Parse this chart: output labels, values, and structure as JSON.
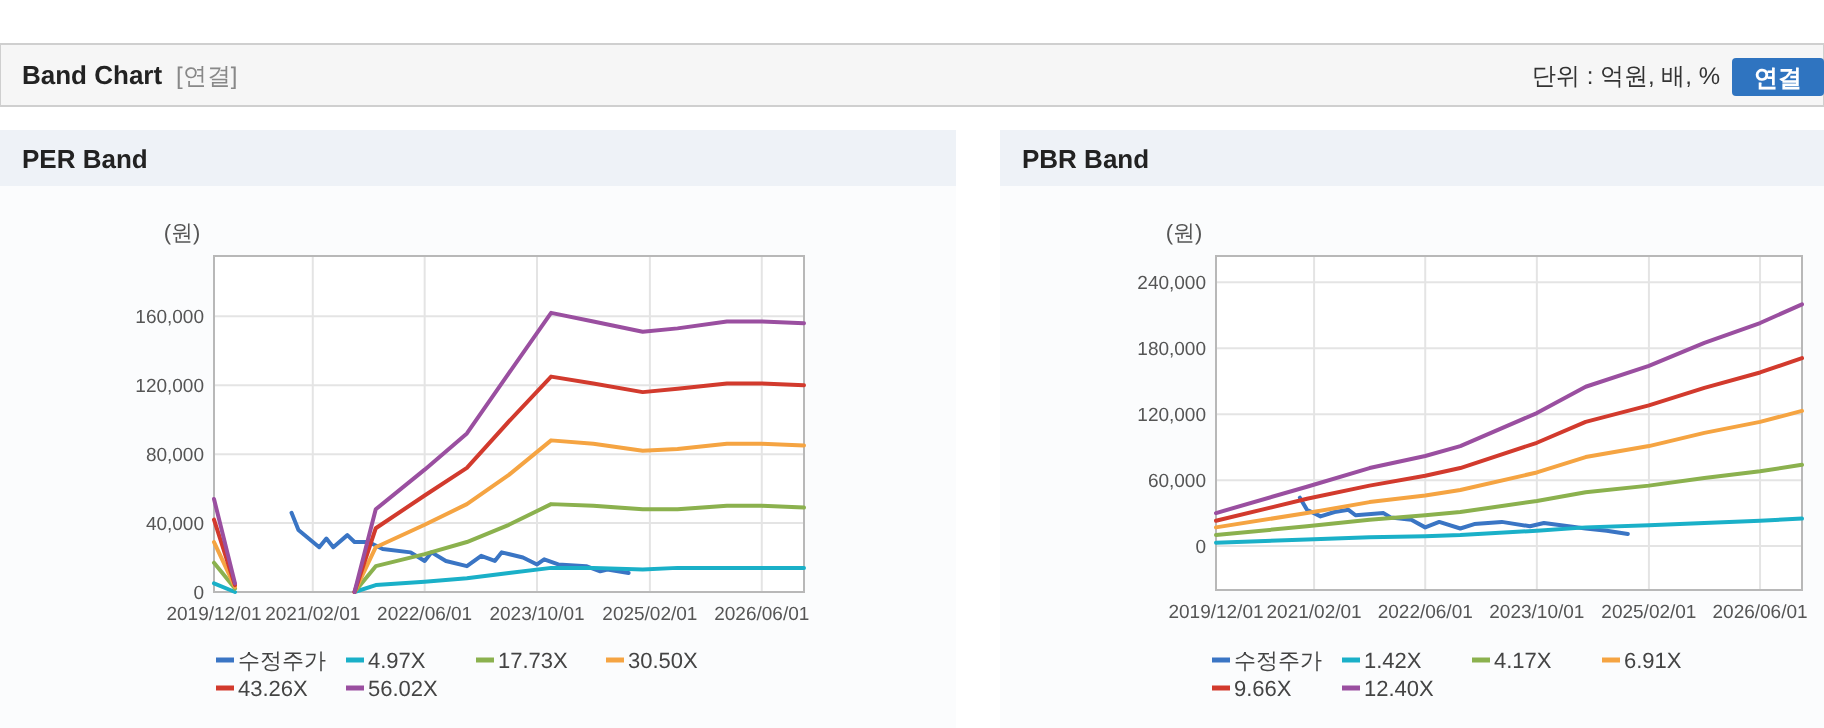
{
  "chart_data": [
    {
      "type": "other",
      "title": "Band Chart",
      "subtitle": "[연결]",
      "annotations": [
        "단위 : 억원, 배, %",
        "연결"
      ]
    },
    {
      "type": "line",
      "title": "PER Band",
      "ylabel": "(원)",
      "xlim": [
        "2019-12-01",
        "2026-12-01"
      ],
      "xticks": [
        {
          "value": "2019-12-01",
          "label": "2019/12/01"
        },
        {
          "value": "2021-02-01",
          "label": "2021/02/01"
        },
        {
          "value": "2022-06-01",
          "label": "2022/06/01"
        },
        {
          "value": "2023-10-01",
          "label": "2023/10/01"
        },
        {
          "value": "2025-02-01",
          "label": "2025/02/01"
        },
        {
          "value": "2026-06-01",
          "label": "2026/06/01"
        }
      ],
      "ylim": [
        0,
        195000
      ],
      "yticks": [
        {
          "value": 0,
          "label": "0"
        },
        {
          "value": 40000,
          "label": "40,000"
        },
        {
          "value": 80000,
          "label": "80,000"
        },
        {
          "value": 120000,
          "label": "120,000"
        },
        {
          "value": 160000,
          "label": "160,000"
        }
      ],
      "grid": true,
      "legend": "bottom",
      "series": [
        {
          "name": "수정주가",
          "color": "#3a75c4",
          "x": [
            "2020-11",
            "2020-12",
            "2021-03",
            "2021-04",
            "2021-05",
            "2021-07",
            "2021-08",
            "2021-10",
            "2021-12",
            "2022-04",
            "2022-06",
            "2022-07",
            "2022-09",
            "2022-12",
            "2023-02",
            "2023-04",
            "2023-05",
            "2023-08",
            "2023-10",
            "2023-11",
            "2024-01",
            "2024-05",
            "2024-07",
            "2024-08",
            "2024-11"
          ],
          "values": [
            46000,
            36000,
            26000,
            31000,
            26000,
            33000,
            29000,
            29000,
            25000,
            23000,
            18000,
            23000,
            18000,
            15000,
            21000,
            18000,
            23000,
            20000,
            16000,
            19000,
            16000,
            15000,
            12000,
            13000,
            11000
          ]
        },
        {
          "name": "4.97X",
          "color": "#1ab0c8",
          "x": [
            "2019-12",
            "2020-03",
            "2020-06",
            "2021-08",
            "2021-11",
            "2022-06",
            "2022-12",
            "2023-06",
            "2023-12",
            "2024-06",
            "2025-01",
            "2025-06",
            "2026-01",
            "2026-06",
            "2026-12"
          ],
          "values": [
            5000,
            0,
            null,
            0,
            4000,
            6000,
            8000,
            11000,
            14000,
            14000,
            13000,
            14000,
            14000,
            14000,
            14000
          ]
        },
        {
          "name": "17.73X",
          "color": "#8bb14e",
          "x": [
            "2019-12",
            "2020-03",
            "2020-06",
            "2021-08",
            "2021-11",
            "2022-06",
            "2022-12",
            "2023-06",
            "2023-12",
            "2024-06",
            "2025-01",
            "2025-06",
            "2026-01",
            "2026-06",
            "2026-12"
          ],
          "values": [
            17000,
            2000,
            null,
            0,
            15000,
            22000,
            29000,
            39000,
            51000,
            50000,
            48000,
            48000,
            50000,
            50000,
            49000
          ]
        },
        {
          "name": "30.50X",
          "color": "#f5a442",
          "x": [
            "2019-12",
            "2020-03",
            "2020-06",
            "2021-08",
            "2021-11",
            "2022-06",
            "2022-12",
            "2023-06",
            "2023-12",
            "2024-06",
            "2025-01",
            "2025-06",
            "2026-01",
            "2026-06",
            "2026-12"
          ],
          "values": [
            29000,
            3000,
            null,
            0,
            26000,
            39000,
            51000,
            68000,
            88000,
            86000,
            82000,
            83000,
            86000,
            86000,
            85000
          ]
        },
        {
          "name": "43.26X",
          "color": "#d23a2d",
          "x": [
            "2019-12",
            "2020-03",
            "2020-06",
            "2021-08",
            "2021-11",
            "2022-06",
            "2022-12",
            "2023-06",
            "2023-12",
            "2024-06",
            "2025-01",
            "2025-06",
            "2026-01",
            "2026-06",
            "2026-12"
          ],
          "values": [
            42000,
            4000,
            null,
            0,
            37000,
            56000,
            72000,
            99000,
            125000,
            121000,
            116000,
            118000,
            121000,
            121000,
            120000
          ]
        },
        {
          "name": "56.02X",
          "color": "#9a4fa0",
          "x": [
            "2019-12",
            "2020-03",
            "2020-06",
            "2021-08",
            "2021-11",
            "2022-06",
            "2022-12",
            "2023-06",
            "2023-12",
            "2024-06",
            "2025-01",
            "2025-06",
            "2026-01",
            "2026-06",
            "2026-12"
          ],
          "values": [
            54000,
            5000,
            null,
            0,
            48000,
            71000,
            92000,
            127000,
            162000,
            157000,
            151000,
            153000,
            157000,
            157000,
            156000
          ]
        }
      ]
    },
    {
      "type": "line",
      "title": "PBR Band",
      "ylabel": "(원)",
      "xlim": [
        "2019-12-01",
        "2026-12-01"
      ],
      "xticks": [
        {
          "value": "2019-12-01",
          "label": "2019/12/01"
        },
        {
          "value": "2021-02-01",
          "label": "2021/02/01"
        },
        {
          "value": "2022-06-01",
          "label": "2022/06/01"
        },
        {
          "value": "2023-10-01",
          "label": "2023/10/01"
        },
        {
          "value": "2025-02-01",
          "label": "2025/02/01"
        },
        {
          "value": "2026-06-01",
          "label": "2026/06/01"
        }
      ],
      "ylim": [
        -40000,
        264000
      ],
      "yticks": [
        {
          "value": 0,
          "label": "0"
        },
        {
          "value": 60000,
          "label": "60,000"
        },
        {
          "value": 120000,
          "label": "120,000"
        },
        {
          "value": 180000,
          "label": "180,000"
        },
        {
          "value": 240000,
          "label": "240,000"
        }
      ],
      "grid": true,
      "legend": "bottom",
      "series": [
        {
          "name": "수정주가",
          "color": "#3a75c4",
          "x": [
            "2020-12",
            "2021-01",
            "2021-03",
            "2021-05",
            "2021-07",
            "2021-08",
            "2021-12",
            "2022-01",
            "2022-04",
            "2022-06",
            "2022-08",
            "2022-11",
            "2023-01",
            "2023-05",
            "2023-09",
            "2023-11",
            "2024-05",
            "2024-08",
            "2024-11"
          ],
          "values": [
            44000,
            33000,
            27000,
            31000,
            33000,
            28000,
            30000,
            26000,
            24000,
            17000,
            22000,
            16000,
            20000,
            22000,
            18000,
            21000,
            16000,
            14000,
            11000
          ]
        },
        {
          "name": "1.42X",
          "color": "#1ab0c8",
          "x": [
            "2019-12",
            "2021-01",
            "2021-10",
            "2022-06",
            "2022-11",
            "2023-10",
            "2024-05",
            "2025-02",
            "2025-10",
            "2026-06",
            "2026-12"
          ],
          "values": [
            3000,
            6000,
            8000,
            9000,
            10000,
            14000,
            17000,
            19000,
            21000,
            23000,
            25000
          ]
        },
        {
          "name": "4.17X",
          "color": "#8bb14e",
          "x": [
            "2019-12",
            "2021-01",
            "2021-10",
            "2022-06",
            "2022-11",
            "2023-10",
            "2024-05",
            "2025-02",
            "2025-10",
            "2026-06",
            "2026-12"
          ],
          "values": [
            10000,
            18000,
            24000,
            28000,
            31000,
            41000,
            49000,
            55000,
            62000,
            68000,
            74000
          ]
        },
        {
          "name": "6.91X",
          "color": "#f5a442",
          "x": [
            "2019-12",
            "2021-01",
            "2021-10",
            "2022-06",
            "2022-11",
            "2023-10",
            "2024-05",
            "2025-02",
            "2025-10",
            "2026-06",
            "2026-12"
          ],
          "values": [
            17000,
            30000,
            40000,
            46000,
            51000,
            67000,
            81000,
            91000,
            103000,
            113000,
            123000
          ]
        },
        {
          "name": "9.66X",
          "color": "#d23a2d",
          "x": [
            "2019-12",
            "2021-01",
            "2021-10",
            "2022-06",
            "2022-11",
            "2023-10",
            "2024-05",
            "2025-02",
            "2025-10",
            "2026-06",
            "2026-12"
          ],
          "values": [
            23000,
            43000,
            55000,
            64000,
            71000,
            94000,
            113000,
            128000,
            144000,
            158000,
            171000
          ]
        },
        {
          "name": "12.40X",
          "color": "#9a4fa0",
          "x": [
            "2019-12",
            "2021-01",
            "2021-10",
            "2022-06",
            "2022-11",
            "2023-10",
            "2024-05",
            "2025-02",
            "2025-10",
            "2026-06",
            "2026-12"
          ],
          "values": [
            30000,
            54000,
            71000,
            82000,
            91000,
            121000,
            145000,
            164000,
            185000,
            203000,
            220000
          ]
        }
      ]
    }
  ]
}
